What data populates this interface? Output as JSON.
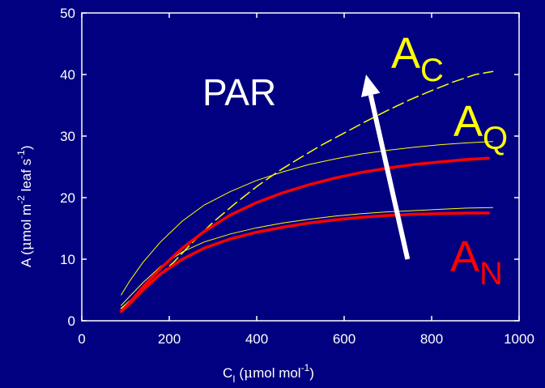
{
  "colors": {
    "background": "#000080",
    "axes": "#ffffff",
    "ac": "#ffff00",
    "aq": "#ffff00",
    "an": "#ff0000",
    "arrow": "#ffffff"
  },
  "chart_data": {
    "type": "line",
    "xlabel": "C",
    "xlabel_sub": "I",
    "xlabel_units_prefix": " (",
    "xlabel_units_mu": "μ",
    "xlabel_units_rest": "mol mol",
    "xlabel_sup": "-1",
    "xlabel_close": ")",
    "ylabel_prefix": "A (",
    "ylabel_mu": "μ",
    "ylabel_mid": "mol m",
    "ylabel_sup1": "-2",
    "ylabel_mid2": " leaf s",
    "ylabel_sup2": "-1",
    "ylabel_close": ")",
    "xlim": [
      0,
      1000
    ],
    "ylim": [
      0,
      50
    ],
    "xticks": [
      "0",
      "200",
      "400",
      "600",
      "800",
      "1000"
    ],
    "yticks": [
      "0",
      "10",
      "20",
      "30",
      "40",
      "50"
    ],
    "grid": false,
    "series": [
      {
        "name": "A",
        "sub": "C",
        "style": "dashed",
        "color": "#ffff00",
        "x": [
          90,
          130,
          170,
          210,
          250,
          300,
          350,
          400,
          450,
          500,
          550,
          600,
          650,
          700,
          750,
          800,
          850,
          900,
          940
        ],
        "y": [
          2.0,
          4.5,
          7.0,
          9.5,
          12.5,
          16.0,
          19.0,
          21.8,
          24.3,
          26.5,
          28.6,
          30.5,
          32.4,
          34.2,
          35.9,
          37.4,
          38.8,
          40.0,
          40.5
        ]
      },
      {
        "name": "A",
        "sub": "Q",
        "style": "thin",
        "color": "#ffff00",
        "x": [
          90,
          110,
          140,
          180,
          230,
          280,
          340,
          400,
          460,
          520,
          580,
          640,
          700,
          760,
          820,
          880,
          940
        ],
        "y": [
          4.2,
          6.5,
          9.5,
          12.8,
          16.2,
          18.8,
          21.0,
          22.8,
          24.2,
          25.4,
          26.3,
          27.1,
          27.7,
          28.2,
          28.6,
          28.9,
          29.1
        ]
      },
      {
        "name": "A",
        "sub": "Q",
        "style": "thin",
        "color": "#ffff00",
        "x": [
          90,
          110,
          140,
          180,
          230,
          280,
          340,
          400,
          460,
          520,
          580,
          640,
          700,
          760,
          820,
          880,
          940
        ],
        "y": [
          2.5,
          4.0,
          6.2,
          8.8,
          11.2,
          12.8,
          14.1,
          15.1,
          15.9,
          16.5,
          17.0,
          17.4,
          17.7,
          17.9,
          18.1,
          18.3,
          18.4
        ]
      },
      {
        "name": "A",
        "sub": "N",
        "style": "thick",
        "color": "#ff0000",
        "x": [
          90,
          110,
          140,
          180,
          230,
          280,
          340,
          400,
          460,
          520,
          580,
          640,
          700,
          760,
          820,
          880,
          930
        ],
        "y": [
          1.5,
          3.0,
          5.5,
          8.5,
          11.8,
          14.5,
          17.2,
          19.2,
          20.8,
          22.1,
          23.2,
          24.1,
          24.8,
          25.4,
          25.8,
          26.2,
          26.4
        ]
      },
      {
        "name": "A",
        "sub": "N",
        "style": "thick",
        "color": "#ff0000",
        "x": [
          90,
          110,
          140,
          180,
          230,
          280,
          340,
          400,
          460,
          520,
          580,
          640,
          700,
          760,
          820,
          880,
          930
        ],
        "y": [
          1.5,
          2.8,
          5.0,
          7.6,
          10.0,
          11.8,
          13.3,
          14.4,
          15.2,
          15.9,
          16.4,
          16.8,
          17.1,
          17.3,
          17.4,
          17.5,
          17.5
        ]
      }
    ],
    "annotations": [
      {
        "id": "ann-ac",
        "main": "A",
        "sub": "C",
        "color": "#ffff00"
      },
      {
        "id": "ann-aq",
        "main": "A",
        "sub": "Q",
        "color": "#ffff00"
      },
      {
        "id": "ann-an",
        "main": "A",
        "sub": "N",
        "color": "#ff0000"
      },
      {
        "id": "ann-par",
        "text": "PAR",
        "color": "#ffffff"
      }
    ],
    "arrow": {
      "from": [
        745,
        10
      ],
      "to": [
        650,
        40
      ]
    }
  }
}
